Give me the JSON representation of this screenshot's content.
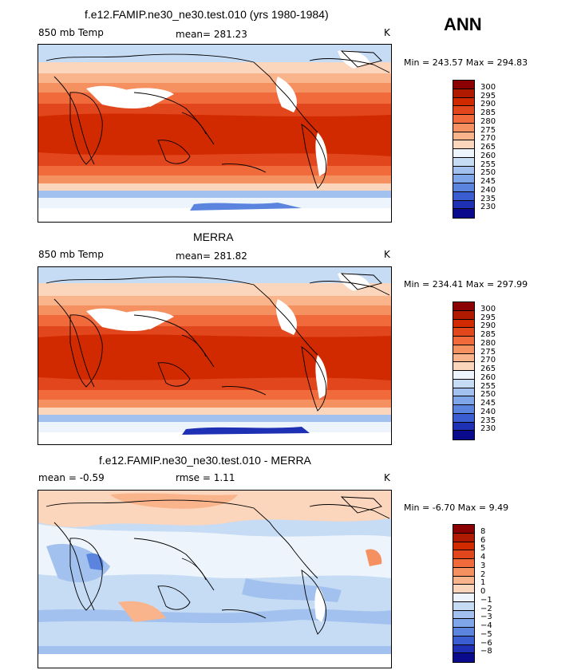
{
  "season": "ANN",
  "panels": [
    {
      "title": "f.e12.FAMIP.ne30_ne30.test.010 (yrs 1980-1984)",
      "left_label": "850 mb Temp",
      "center_label": "mean=  281.23",
      "units": "K",
      "minmax": "Min =  243.57  Max =  294.83",
      "kind": "temp"
    },
    {
      "title": "MERRA",
      "left_label": "850 mb Temp",
      "center_label": "mean=  281.82",
      "units": "K",
      "minmax": "Min =  234.41  Max =  297.99",
      "kind": "temp"
    },
    {
      "title": "f.e12.FAMIP.ne30_ne30.test.010 - MERRA",
      "left_label": "mean =   -0.59",
      "center_label": "rmse =    1.11",
      "units": "K",
      "minmax": "Min =  -6.70  Max =    9.49",
      "kind": "diff"
    }
  ],
  "colorbars": {
    "temp": {
      "levels": [
        "300",
        "295",
        "290",
        "285",
        "280",
        "275",
        "270",
        "265",
        "260",
        "255",
        "250",
        "245",
        "240",
        "235",
        "230"
      ],
      "colors": [
        "#8b0000",
        "#b01a00",
        "#d12a00",
        "#e2461c",
        "#f06a3c",
        "#f59060",
        "#f9b48c",
        "#fcd6bc",
        "#eef4fb",
        "#c6dbf4",
        "#a2c1ee",
        "#7ea6e8",
        "#5a84de",
        "#3a5ed2",
        "#1e30b4",
        "#0a0a8c"
      ]
    },
    "diff": {
      "levels": [
        "8",
        "6",
        "5",
        "4",
        "3",
        "2",
        "1",
        "0",
        "−1",
        "−2",
        "−3",
        "−4",
        "−5",
        "−6",
        "−8"
      ],
      "colors": [
        "#8b0000",
        "#b01a00",
        "#d12a00",
        "#e2461c",
        "#f06a3c",
        "#f59060",
        "#f9b48c",
        "#fcd6bc",
        "#eef4fb",
        "#c6dbf4",
        "#a2c1ee",
        "#7ea6e8",
        "#5a84de",
        "#3a5ed2",
        "#1e30b4",
        "#0a0a8c"
      ]
    }
  }
}
